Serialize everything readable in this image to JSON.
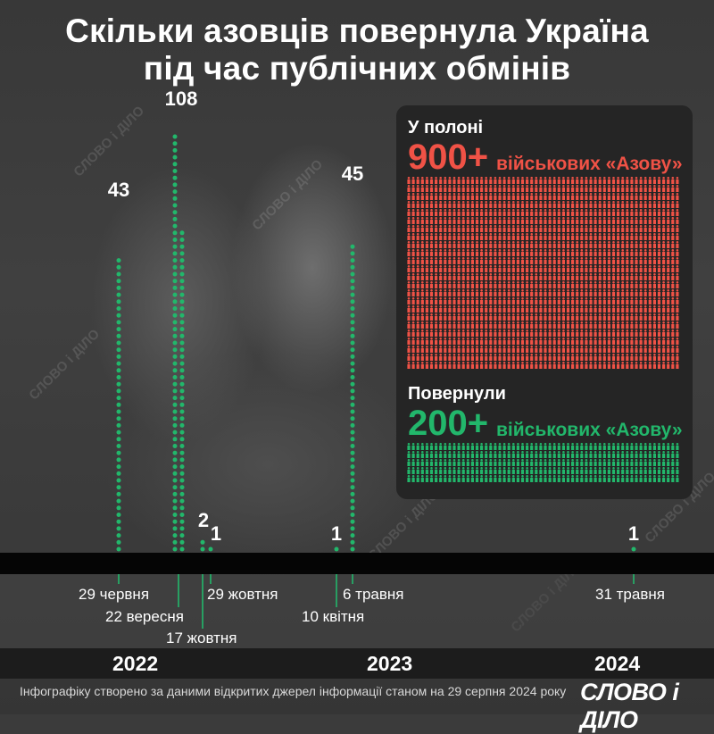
{
  "title": {
    "line1": "Скільки азовців повернула Україна",
    "line2": "під час публічних обмінів"
  },
  "chart_data": {
    "type": "bar",
    "title": "Скільки азовців повернула Україна під час публічних обмінів",
    "categories": [
      "29 червня",
      "22 вересня",
      "17 жовтня",
      "29 жовтня",
      "10 квітня",
      "6 травня",
      "31 травня"
    ],
    "years": [
      "2022",
      "2022",
      "2022",
      "2022",
      "2023",
      "2023",
      "2024"
    ],
    "values": [
      43,
      108,
      2,
      1,
      1,
      45,
      1
    ],
    "value_labels": [
      "43",
      "108",
      "2",
      "1",
      "1",
      "45",
      "1"
    ],
    "color": "#22b76b"
  },
  "years": [
    "2022",
    "2023",
    "2024"
  ],
  "panel": {
    "captivity_label": "У полоні",
    "captivity_value": "900+",
    "captivity_suffix": "військових «Азову»",
    "captivity_color": "#f05246",
    "returned_label": "Повернули",
    "returned_value": "200+",
    "returned_suffix": "військових «Азову»",
    "returned_color": "#22b76b"
  },
  "footer": "Інфографіку створено за даними відкритих джерел інформації станом на 29 серпня 2024 року",
  "logo": "СЛОВО і ДІЛО",
  "watermark": "СЛОВО і ДІЛО"
}
